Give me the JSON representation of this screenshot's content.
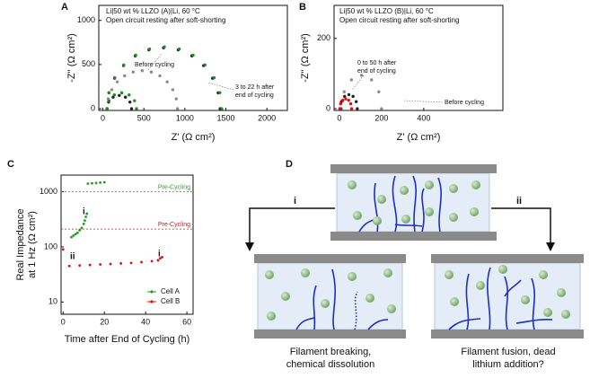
{
  "chart_data": [
    {
      "panel": "A",
      "type": "scatter",
      "notes": [
        "Li|50 wt % LLZO (A)|Li, 60 °C",
        "Open circuit resting after soft-shorting"
      ],
      "xlabel": "Z' (Ω cm²)",
      "ylabel": "-Z'' (Ω cm²)",
      "xlim": [
        -50,
        2250
      ],
      "ylim": [
        -20,
        1170
      ],
      "xticks": [
        0,
        500,
        1000,
        1500,
        2000
      ],
      "yticks": [
        0,
        500,
        1000
      ],
      "annotations": [
        [
          "Before cycling"
        ],
        [
          "3 to 22 h after",
          "end of cycling"
        ]
      ],
      "series": [
        {
          "color": "#8c8c8c",
          "x": [
            50,
            65,
            108,
            176,
            265,
            369,
            480,
            591,
            695,
            784,
            852,
            895,
            910
          ],
          "values": [
            0,
            111,
            215,
            304,
            372,
            415,
            430,
            415,
            372,
            304,
            215,
            111,
            0
          ]
        },
        {
          "color": "#222222",
          "x": [
            50,
            70,
            125,
            200,
            275,
            330,
            350
          ],
          "values": [
            0,
            75,
            130,
            150,
            130,
            75,
            0
          ]
        },
        {
          "color": "#1e8c1e",
          "x": [
            50,
            74,
            140,
            230,
            320,
            386,
            410
          ],
          "values": [
            0,
            90,
            156,
            180,
            156,
            90,
            0
          ]
        },
        {
          "color": "#222222",
          "x": [
            50,
            74,
            142,
            252,
            395,
            561,
            740,
            919,
            1085,
            1228,
            1338,
            1406,
            1430
          ],
          "values": [
            0,
            179,
            345,
            488,
            598,
            666,
            690,
            666,
            598,
            488,
            345,
            179,
            0
          ]
        },
        {
          "color": "#1e8c1e",
          "x": [
            50,
            74,
            144,
            255,
            400,
            569,
            750,
            931,
            1100,
            1245,
            1356,
            1426,
            1450
          ],
          "values": [
            0,
            181,
            350,
            495,
            606,
            676,
            700,
            676,
            606,
            495,
            350,
            181,
            0
          ]
        }
      ]
    },
    {
      "panel": "B",
      "type": "scatter",
      "notes": [
        "Li|50 wt % LLZO (B)|Li, 60 °C",
        "Open circuit resting after soft-shorting"
      ],
      "xlabel": "Z' (Ω cm²)",
      "ylabel": "-Z'' (Ω cm²)",
      "xlim": [
        -25,
        775
      ],
      "ylim": [
        -5,
        294
      ],
      "xticks": [
        0,
        200,
        400
      ],
      "yticks": [
        0,
        200
      ],
      "annotations": [
        [
          "0 to 50 h after",
          "end of cycling"
        ],
        [
          "Before cycling"
        ]
      ],
      "series": [
        {
          "color": "#8c8c8c",
          "x": [
            10,
            23,
            57.5,
            105,
            152.5,
            187,
            200
          ],
          "values": [
            0,
            48,
            82,
            95,
            82,
            48,
            0
          ]
        },
        {
          "color": "#222222",
          "x": [
            5,
            10,
            25,
            45,
            65,
            80,
            85
          ],
          "values": [
            0,
            20,
            35,
            40,
            35,
            20,
            0
          ]
        },
        {
          "color": "#e01010",
          "x": [
            2,
            6,
            16,
            30,
            44,
            54,
            58
          ],
          "values": [
            0,
            14,
            24,
            28,
            24,
            14,
            0
          ]
        }
      ]
    },
    {
      "panel": "C",
      "type": "scatter",
      "log_y": true,
      "xlabel": "Time after End of Cycling (h)",
      "ylabel": [
        "Real Impedance",
        "at 1 Hz (Ω cm²)"
      ],
      "xlim": [
        -1,
        63
      ],
      "ylim": [
        6,
        2000
      ],
      "xticks": [
        0,
        20,
        40,
        60
      ],
      "yticks": [
        10,
        100,
        1000
      ],
      "annotations": [
        [
          "i"
        ],
        [
          "ii"
        ],
        [
          "i"
        ]
      ],
      "refs": [
        {
          "value": 1000,
          "label": "Pre-Cycling",
          "color": "#2ca02c"
        },
        {
          "value": 210,
          "label": "Pre-Cycling",
          "color": "#e01010"
        }
      ],
      "legend": "lower right",
      "series": [
        {
          "name": "Cell A",
          "color": "#1e9c1e",
          "x": [
            4,
            5,
            6,
            7,
            8,
            9,
            10,
            10.5,
            11,
            11.5,
            12,
            14,
            16,
            18,
            20
          ],
          "values": [
            150,
            160,
            170,
            180,
            200,
            220,
            260,
            300,
            350,
            400,
            1400,
            1420,
            1440,
            1460,
            1480
          ]
        },
        {
          "name": "Cell B",
          "color": "#e01010",
          "x": [
            0,
            3,
            8,
            13,
            18,
            23,
            28,
            33,
            38,
            43,
            46,
            47,
            48
          ],
          "values": [
            90,
            45,
            46,
            47,
            48,
            49,
            50,
            51,
            53,
            55,
            57,
            62,
            65
          ]
        }
      ]
    }
  ],
  "diagram": {
    "panel": "D",
    "paths": [
      "i",
      "ii"
    ],
    "outcomes": [
      [
        "Filament breaking,",
        "chemical dissolution"
      ],
      [
        "Filament fusion, dead",
        "lithium addition?"
      ]
    ]
  }
}
